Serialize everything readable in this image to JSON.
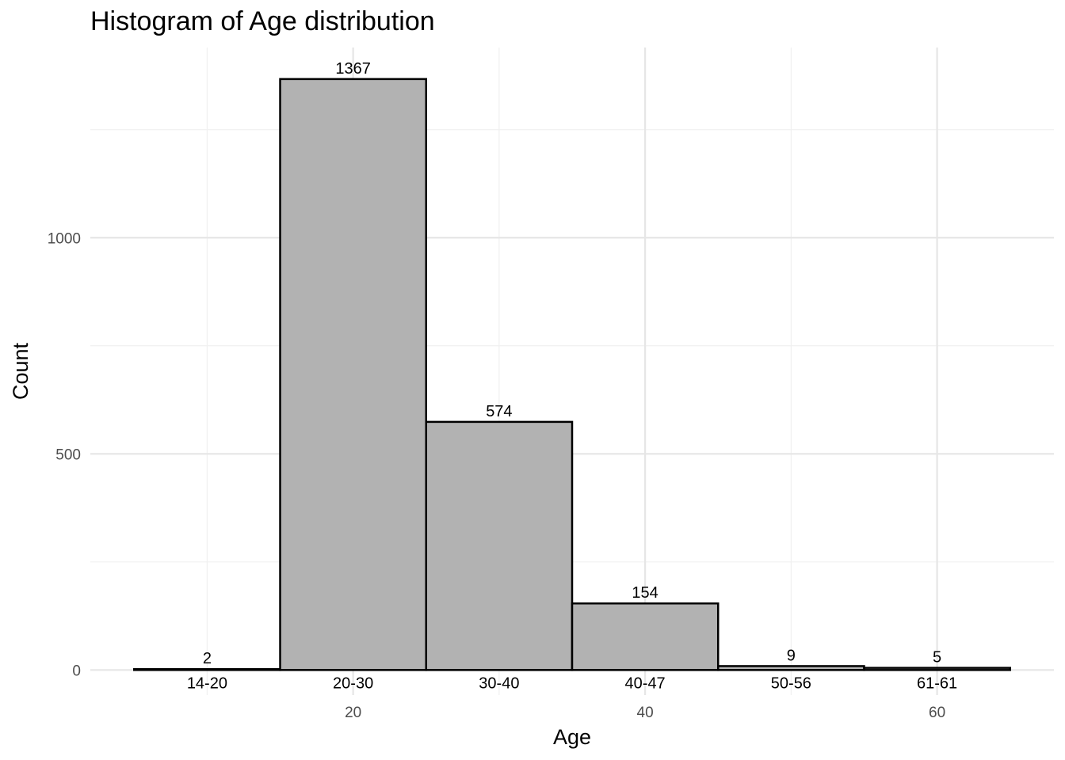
{
  "chart_data": {
    "type": "bar",
    "title": "Histogram of Age distribution",
    "xlabel": "Age",
    "ylabel": "Count",
    "bins": [
      {
        "from": 5,
        "to": 15,
        "label": "14-20",
        "count": 2
      },
      {
        "from": 15,
        "to": 25,
        "label": "20-30",
        "count": 1367
      },
      {
        "from": 25,
        "to": 35,
        "label": "30-40",
        "count": 574
      },
      {
        "from": 35,
        "to": 45,
        "label": "40-47",
        "count": 154
      },
      {
        "from": 45,
        "to": 55,
        "label": "50-56",
        "count": 9
      },
      {
        "from": 55,
        "to": 65,
        "label": "61-61",
        "count": 5
      }
    ],
    "xticks": [
      20,
      40,
      60
    ],
    "yticks": [
      0,
      500,
      1000
    ],
    "xlim": [
      2,
      68
    ],
    "ylim": [
      -58,
      1440
    ],
    "grid": true,
    "colors": {
      "bar_fill": "#b2b2b2",
      "bar_stroke": "#000000",
      "grid_major": "#e6e6e6",
      "grid_minor": "#f0f0f0"
    }
  }
}
